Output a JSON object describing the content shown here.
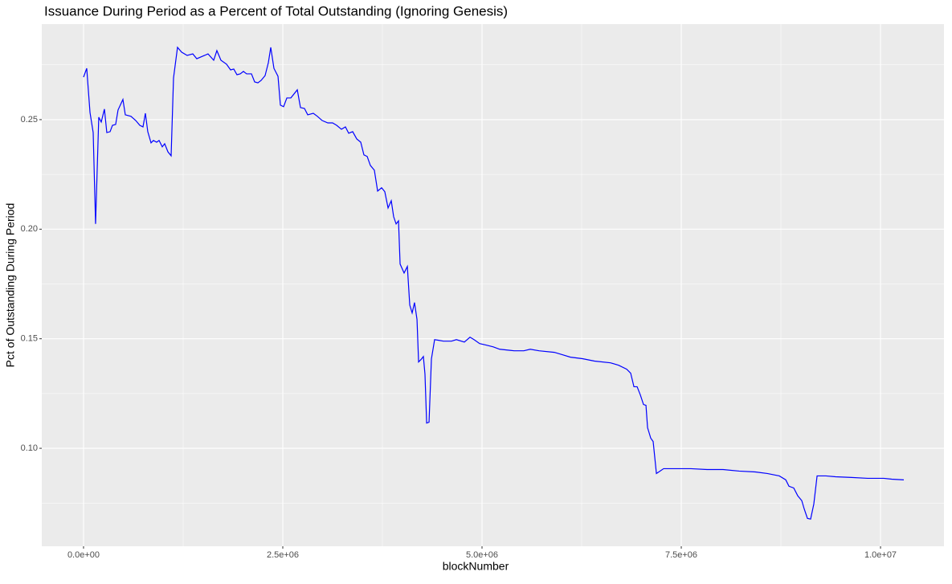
{
  "chart_data": {
    "type": "line",
    "title": "Issuance During Period as a Percent of Total Outstanding (Ignoring Genesis)",
    "x_label": "blockNumber",
    "y_label": "Pct of Outstanding During Period",
    "xlim": [
      -524000,
      10796000
    ],
    "ylim": [
      0.0553,
      0.2936
    ],
    "xticks": [
      {
        "value": 0,
        "label": "0.0e+00"
      },
      {
        "value": 2500000,
        "label": "2.5e+06"
      },
      {
        "value": 5000000,
        "label": "5.0e+06"
      },
      {
        "value": 7500000,
        "label": "7.5e+06"
      },
      {
        "value": 10000000,
        "label": "1.0e+07"
      }
    ],
    "yticks": [
      {
        "value": 0.1,
        "label": "0.10"
      },
      0.15,
      {
        "value": 0.2,
        "label": "0.20"
      },
      0.25
    ],
    "grid": true,
    "series": [
      {
        "color": "#0000ff",
        "x": [
          0,
          40000,
          81000,
          121000,
          151000,
          191000,
          222000,
          262000,
          292000,
          333000,
          363000,
          403000,
          433000,
          494000,
          524000,
          595000,
          655000,
          706000,
          746000,
          776000,
          806000,
          847000,
          877000,
          917000,
          948000,
          988000,
          1018000,
          1059000,
          1099000,
          1129000,
          1179000,
          1230000,
          1300000,
          1371000,
          1421000,
          1492000,
          1562000,
          1633000,
          1673000,
          1724000,
          1794000,
          1845000,
          1885000,
          1925000,
          1966000,
          2006000,
          2046000,
          2107000,
          2147000,
          2188000,
          2228000,
          2278000,
          2319000,
          2349000,
          2389000,
          2440000,
          2470000,
          2510000,
          2551000,
          2601000,
          2682000,
          2722000,
          2772000,
          2813000,
          2883000,
          2934000,
          2994000,
          3065000,
          3125000,
          3176000,
          3236000,
          3286000,
          3327000,
          3377000,
          3428000,
          3478000,
          3518000,
          3559000,
          3599000,
          3649000,
          3690000,
          3740000,
          3780000,
          3821000,
          3861000,
          3891000,
          3922000,
          3952000,
          3972000,
          4022000,
          4063000,
          4093000,
          4123000,
          4153000,
          4184000,
          4204000,
          4234000,
          4264000,
          4284000,
          4305000,
          4335000,
          4365000,
          4405000,
          4456000,
          4516000,
          4617000,
          4678000,
          4778000,
          4849000,
          4899000,
          4970000,
          5051000,
          5141000,
          5222000,
          5403000,
          5524000,
          5605000,
          5716000,
          5907000,
          6008000,
          6109000,
          6260000,
          6411000,
          6613000,
          6714000,
          6815000,
          6865000,
          6906000,
          6946000,
          6986000,
          7026000,
          7057000,
          7077000,
          7117000,
          7147000,
          7188000,
          7218000,
          7278000,
          7420000,
          7621000,
          7823000,
          8024000,
          8226000,
          8428000,
          8579000,
          8730000,
          8811000,
          8851000,
          8911000,
          8962000,
          9012000,
          9042000,
          9083000,
          9123000,
          9163000,
          9204000,
          9315000,
          9435000,
          9637000,
          9839000,
          10040000,
          10141000,
          10292000
        ],
        "values": [
          0.2694,
          0.2734,
          0.2533,
          0.2441,
          0.2024,
          0.2511,
          0.2489,
          0.2548,
          0.2441,
          0.2445,
          0.2474,
          0.2478,
          0.2544,
          0.2592,
          0.2522,
          0.2515,
          0.2496,
          0.2474,
          0.2467,
          0.2529,
          0.2445,
          0.2394,
          0.2405,
          0.2397,
          0.2405,
          0.2376,
          0.239,
          0.2353,
          0.2335,
          0.269,
          0.283,
          0.2808,
          0.2793,
          0.28,
          0.2778,
          0.2789,
          0.28,
          0.2771,
          0.2815,
          0.2771,
          0.2753,
          0.2727,
          0.2731,
          0.2705,
          0.2709,
          0.272,
          0.2709,
          0.2709,
          0.2672,
          0.2668,
          0.2679,
          0.2701,
          0.276,
          0.283,
          0.2734,
          0.2698,
          0.2566,
          0.2559,
          0.2599,
          0.2599,
          0.2636,
          0.2555,
          0.2551,
          0.2522,
          0.2529,
          0.2515,
          0.2496,
          0.2485,
          0.2485,
          0.2474,
          0.2456,
          0.2467,
          0.2438,
          0.2445,
          0.2412,
          0.2397,
          0.2339,
          0.2332,
          0.2291,
          0.2269,
          0.2174,
          0.2189,
          0.2171,
          0.2097,
          0.213,
          0.2057,
          0.2024,
          0.2038,
          0.1841,
          0.18,
          0.183,
          0.1654,
          0.1618,
          0.1665,
          0.1588,
          0.1394,
          0.1405,
          0.1419,
          0.1339,
          0.1115,
          0.1119,
          0.1408,
          0.1496,
          0.1493,
          0.1489,
          0.1489,
          0.1496,
          0.1485,
          0.1507,
          0.1496,
          0.1478,
          0.1471,
          0.1463,
          0.1452,
          0.1445,
          0.1445,
          0.1452,
          0.1445,
          0.1438,
          0.1427,
          0.1416,
          0.1409,
          0.1398,
          0.139,
          0.1379,
          0.1361,
          0.1343,
          0.1281,
          0.1281,
          0.1244,
          0.12,
          0.1196,
          0.1094,
          0.1046,
          0.1031,
          0.0885,
          0.0892,
          0.0907,
          0.0907,
          0.0907,
          0.0903,
          0.0903,
          0.0896,
          0.0892,
          0.0885,
          0.0874,
          0.0856,
          0.0827,
          0.0819,
          0.0783,
          0.0761,
          0.0724,
          0.068,
          0.0677,
          0.0746,
          0.0874,
          0.0874,
          0.087,
          0.0867,
          0.0863,
          0.0863,
          0.0859,
          0.0856
        ]
      }
    ]
  }
}
